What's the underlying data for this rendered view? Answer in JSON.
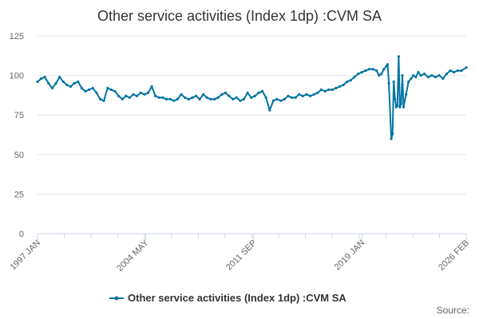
{
  "chart_data": {
    "type": "line",
    "title": "Other service activities (Index 1dp) :CVM SA",
    "xlabel": "",
    "ylabel": "",
    "ylim": [
      0,
      125
    ],
    "yticks": [
      0,
      25,
      50,
      75,
      100,
      125
    ],
    "xlim": [
      "1997-01",
      "2026-02"
    ],
    "xticks": [
      {
        "date": "1997-01",
        "label": "1997 JAN"
      },
      {
        "date": "2004-05",
        "label": "2004 MAY"
      },
      {
        "date": "2011-09",
        "label": "2011 SEP"
      },
      {
        "date": "2019-01",
        "label": "2019 JAN"
      },
      {
        "date": "2026-02",
        "label": "2026 FEB"
      }
    ],
    "grid": "horizontal",
    "legend": "bottom-center",
    "series": [
      {
        "name": "Other service activities (Index 1dp) :CVM SA",
        "color": "#0075a3",
        "points": [
          [
            "1997-01",
            96
          ],
          [
            "1997-04",
            98
          ],
          [
            "1997-07",
            99
          ],
          [
            "1997-10",
            95
          ],
          [
            "1998-01",
            92
          ],
          [
            "1998-04",
            95
          ],
          [
            "1998-07",
            99
          ],
          [
            "1998-10",
            96
          ],
          [
            "1999-01",
            94
          ],
          [
            "1999-04",
            93
          ],
          [
            "1999-07",
            95
          ],
          [
            "1999-10",
            96
          ],
          [
            "2000-01",
            92
          ],
          [
            "2000-04",
            90
          ],
          [
            "2000-07",
            91
          ],
          [
            "2000-10",
            92
          ],
          [
            "2001-01",
            89
          ],
          [
            "2001-04",
            85
          ],
          [
            "2001-07",
            84
          ],
          [
            "2001-10",
            92
          ],
          [
            "2002-01",
            91
          ],
          [
            "2002-04",
            90
          ],
          [
            "2002-07",
            87
          ],
          [
            "2002-10",
            85
          ],
          [
            "2003-01",
            87
          ],
          [
            "2003-04",
            86
          ],
          [
            "2003-07",
            88
          ],
          [
            "2003-10",
            87
          ],
          [
            "2004-01",
            89
          ],
          [
            "2004-04",
            88
          ],
          [
            "2004-07",
            89
          ],
          [
            "2004-10",
            93
          ],
          [
            "2005-01",
            87
          ],
          [
            "2005-04",
            86
          ],
          [
            "2005-07",
            86
          ],
          [
            "2005-10",
            85
          ],
          [
            "2006-01",
            85
          ],
          [
            "2006-04",
            84
          ],
          [
            "2006-07",
            85
          ],
          [
            "2006-10",
            88
          ],
          [
            "2007-01",
            86
          ],
          [
            "2007-04",
            85
          ],
          [
            "2007-07",
            86
          ],
          [
            "2007-10",
            87
          ],
          [
            "2008-01",
            85
          ],
          [
            "2008-04",
            88
          ],
          [
            "2008-07",
            86
          ],
          [
            "2008-10",
            85
          ],
          [
            "2009-01",
            85
          ],
          [
            "2009-04",
            86
          ],
          [
            "2009-07",
            88
          ],
          [
            "2009-10",
            89
          ],
          [
            "2010-01",
            87
          ],
          [
            "2010-04",
            85
          ],
          [
            "2010-07",
            86
          ],
          [
            "2010-10",
            84
          ],
          [
            "2011-01",
            85
          ],
          [
            "2011-04",
            89
          ],
          [
            "2011-07",
            86
          ],
          [
            "2011-10",
            87
          ],
          [
            "2012-01",
            89
          ],
          [
            "2012-04",
            90
          ],
          [
            "2012-07",
            86
          ],
          [
            "2012-10",
            78
          ],
          [
            "2013-01",
            84
          ],
          [
            "2013-04",
            85
          ],
          [
            "2013-07",
            84
          ],
          [
            "2013-10",
            85
          ],
          [
            "2014-01",
            87
          ],
          [
            "2014-04",
            86
          ],
          [
            "2014-07",
            86
          ],
          [
            "2014-10",
            88
          ],
          [
            "2015-01",
            87
          ],
          [
            "2015-04",
            88
          ],
          [
            "2015-07",
            87
          ],
          [
            "2015-10",
            88
          ],
          [
            "2016-01",
            89
          ],
          [
            "2016-04",
            91
          ],
          [
            "2016-07",
            90
          ],
          [
            "2016-10",
            91
          ],
          [
            "2017-01",
            91
          ],
          [
            "2017-04",
            92
          ],
          [
            "2017-07",
            93
          ],
          [
            "2017-10",
            94
          ],
          [
            "2018-01",
            96
          ],
          [
            "2018-04",
            97
          ],
          [
            "2018-07",
            99
          ],
          [
            "2018-10",
            101
          ],
          [
            "2019-01",
            102
          ],
          [
            "2019-04",
            103
          ],
          [
            "2019-07",
            104
          ],
          [
            "2019-10",
            104
          ],
          [
            "2020-01",
            103
          ],
          [
            "2020-03",
            100
          ],
          [
            "2020-05",
            101
          ],
          [
            "2020-07",
            104
          ],
          [
            "2020-09",
            106
          ],
          [
            "2020-10",
            107
          ],
          [
            "2020-11",
            95
          ],
          [
            "2021-01",
            60
          ],
          [
            "2021-02",
            63
          ],
          [
            "2021-03",
            96
          ],
          [
            "2021-04",
            85
          ],
          [
            "2021-05",
            80
          ],
          [
            "2021-06",
            81
          ],
          [
            "2021-07",
            112
          ],
          [
            "2021-08",
            80
          ],
          [
            "2021-09",
            82
          ],
          [
            "2021-10",
            100
          ],
          [
            "2021-11",
            80
          ],
          [
            "2022-01",
            88
          ],
          [
            "2022-03",
            96
          ],
          [
            "2022-05",
            98
          ],
          [
            "2022-07",
            100
          ],
          [
            "2022-09",
            99
          ],
          [
            "2022-11",
            102
          ],
          [
            "2023-01",
            100
          ],
          [
            "2023-04",
            101
          ],
          [
            "2023-07",
            99
          ],
          [
            "2023-10",
            100
          ],
          [
            "2024-01",
            99
          ],
          [
            "2024-04",
            100
          ],
          [
            "2024-07",
            98
          ],
          [
            "2024-10",
            101
          ],
          [
            "2025-01",
            103
          ],
          [
            "2025-04",
            102
          ],
          [
            "2025-07",
            103
          ],
          [
            "2025-10",
            103
          ],
          [
            "2026-02",
            105
          ]
        ]
      }
    ]
  },
  "footer": {
    "source_label": "Source:"
  }
}
